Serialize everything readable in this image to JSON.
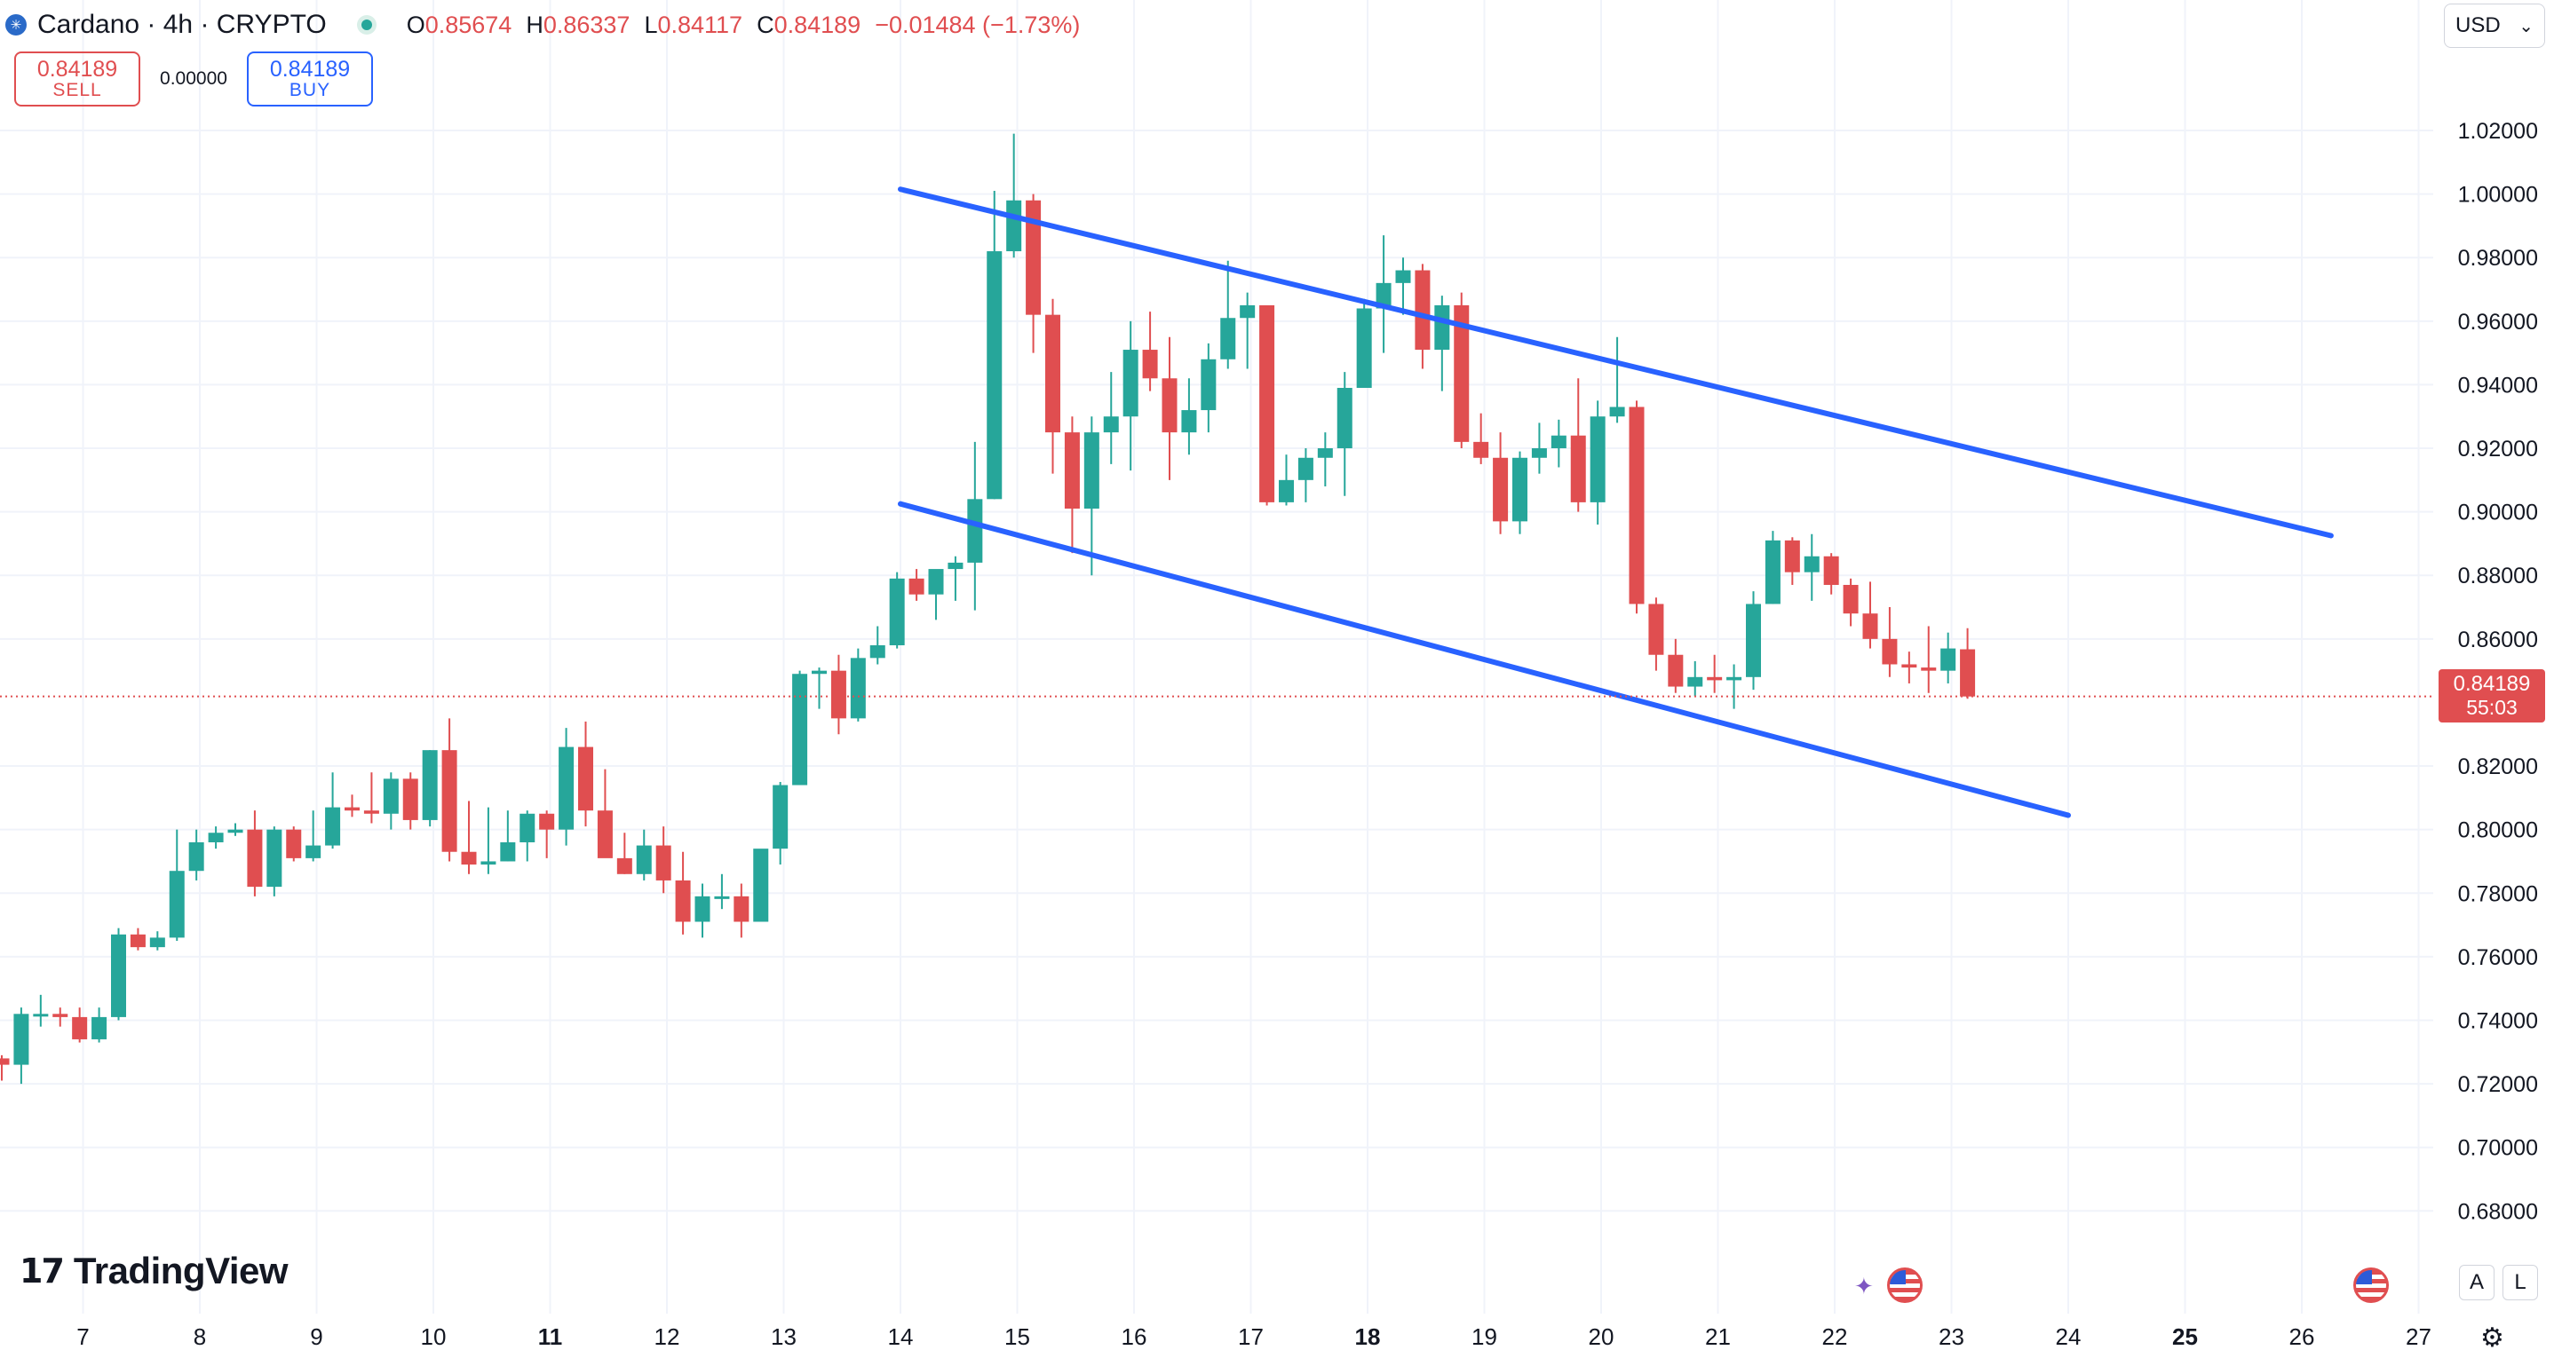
{
  "header": {
    "symbol_title": "Cardano · 4h · CRYPTO",
    "symbol_icon": "cardano-icon",
    "ohlc": {
      "o_label": "O",
      "o_value": "0.85674",
      "h_label": "H",
      "h_value": "0.86337",
      "l_label": "L",
      "l_value": "0.84117",
      "c_label": "C",
      "c_value": "0.84189",
      "change": "−0.01484 (−1.73%)"
    }
  },
  "trade": {
    "sell_price": "0.84189",
    "sell_label": "SELL",
    "spread": "0.00000",
    "buy_price": "0.84189",
    "buy_label": "BUY"
  },
  "currency": {
    "label": "USD"
  },
  "price_tag": {
    "price": "0.84189",
    "countdown": "55:03"
  },
  "branding": {
    "logo_mark": "17",
    "logo_text": "TradingView"
  },
  "controls": {
    "auto_label": "A",
    "log_label": "L"
  },
  "colors": {
    "up": "#26a69a",
    "down": "#e04e50",
    "channel": "#2962ff",
    "grid": "#f0f3fa",
    "price_line": "#e04e50"
  },
  "chart_data": {
    "type": "candlestick",
    "timeframe": "4h",
    "y_range": [
      0.665,
      1.045
    ],
    "y_ticks": [
      "1.02000",
      "1.00000",
      "0.98000",
      "0.96000",
      "0.94000",
      "0.92000",
      "0.90000",
      "0.88000",
      "0.86000",
      "0.82000",
      "0.80000",
      "0.78000",
      "0.76000",
      "0.74000",
      "0.72000",
      "0.70000",
      "0.68000"
    ],
    "x_ticks": [
      {
        "day": 7,
        "label": "7",
        "bold": false
      },
      {
        "day": 8,
        "label": "8",
        "bold": false
      },
      {
        "day": 9,
        "label": "9",
        "bold": false
      },
      {
        "day": 10,
        "label": "10",
        "bold": false
      },
      {
        "day": 11,
        "label": "11",
        "bold": true
      },
      {
        "day": 12,
        "label": "12",
        "bold": false
      },
      {
        "day": 13,
        "label": "13",
        "bold": false
      },
      {
        "day": 14,
        "label": "14",
        "bold": false
      },
      {
        "day": 15,
        "label": "15",
        "bold": false
      },
      {
        "day": 16,
        "label": "16",
        "bold": false
      },
      {
        "day": 17,
        "label": "17",
        "bold": false
      },
      {
        "day": 18,
        "label": "18",
        "bold": true
      },
      {
        "day": 19,
        "label": "19",
        "bold": false
      },
      {
        "day": 20,
        "label": "20",
        "bold": false
      },
      {
        "day": 21,
        "label": "21",
        "bold": false
      },
      {
        "day": 22,
        "label": "22",
        "bold": false
      },
      {
        "day": 23,
        "label": "23",
        "bold": false
      },
      {
        "day": 24,
        "label": "24",
        "bold": false
      },
      {
        "day": 25,
        "label": "25",
        "bold": true
      },
      {
        "day": 26,
        "label": "26",
        "bold": false
      },
      {
        "day": 27,
        "label": "27",
        "bold": false
      }
    ],
    "grid": true,
    "current_price": 0.84189,
    "candles": [
      {
        "o": 0.728,
        "h": 0.729,
        "l": 0.721,
        "c": 0.726
      },
      {
        "o": 0.726,
        "h": 0.744,
        "l": 0.72,
        "c": 0.742
      },
      {
        "o": 0.742,
        "h": 0.748,
        "l": 0.738,
        "c": 0.742
      },
      {
        "o": 0.742,
        "h": 0.744,
        "l": 0.738,
        "c": 0.741
      },
      {
        "o": 0.741,
        "h": 0.744,
        "l": 0.733,
        "c": 0.734
      },
      {
        "o": 0.734,
        "h": 0.744,
        "l": 0.733,
        "c": 0.741
      },
      {
        "o": 0.741,
        "h": 0.769,
        "l": 0.74,
        "c": 0.767
      },
      {
        "o": 0.767,
        "h": 0.769,
        "l": 0.762,
        "c": 0.763
      },
      {
        "o": 0.763,
        "h": 0.768,
        "l": 0.762,
        "c": 0.766
      },
      {
        "o": 0.766,
        "h": 0.8,
        "l": 0.765,
        "c": 0.787
      },
      {
        "o": 0.787,
        "h": 0.8,
        "l": 0.784,
        "c": 0.796
      },
      {
        "o": 0.796,
        "h": 0.801,
        "l": 0.794,
        "c": 0.799
      },
      {
        "o": 0.799,
        "h": 0.802,
        "l": 0.798,
        "c": 0.8
      },
      {
        "o": 0.8,
        "h": 0.806,
        "l": 0.779,
        "c": 0.782
      },
      {
        "o": 0.782,
        "h": 0.801,
        "l": 0.779,
        "c": 0.8
      },
      {
        "o": 0.8,
        "h": 0.801,
        "l": 0.79,
        "c": 0.791
      },
      {
        "o": 0.791,
        "h": 0.806,
        "l": 0.79,
        "c": 0.795
      },
      {
        "o": 0.795,
        "h": 0.818,
        "l": 0.794,
        "c": 0.807
      },
      {
        "o": 0.807,
        "h": 0.811,
        "l": 0.804,
        "c": 0.806
      },
      {
        "o": 0.806,
        "h": 0.818,
        "l": 0.802,
        "c": 0.805
      },
      {
        "o": 0.805,
        "h": 0.818,
        "l": 0.8,
        "c": 0.816
      },
      {
        "o": 0.816,
        "h": 0.818,
        "l": 0.8,
        "c": 0.803
      },
      {
        "o": 0.803,
        "h": 0.825,
        "l": 0.801,
        "c": 0.825
      },
      {
        "o": 0.825,
        "h": 0.835,
        "l": 0.79,
        "c": 0.793
      },
      {
        "o": 0.793,
        "h": 0.809,
        "l": 0.786,
        "c": 0.789
      },
      {
        "o": 0.789,
        "h": 0.807,
        "l": 0.786,
        "c": 0.79
      },
      {
        "o": 0.79,
        "h": 0.806,
        "l": 0.79,
        "c": 0.796
      },
      {
        "o": 0.796,
        "h": 0.806,
        "l": 0.79,
        "c": 0.805
      },
      {
        "o": 0.805,
        "h": 0.806,
        "l": 0.791,
        "c": 0.8
      },
      {
        "o": 0.8,
        "h": 0.832,
        "l": 0.795,
        "c": 0.826
      },
      {
        "o": 0.826,
        "h": 0.834,
        "l": 0.801,
        "c": 0.806
      },
      {
        "o": 0.806,
        "h": 0.819,
        "l": 0.792,
        "c": 0.791
      },
      {
        "o": 0.791,
        "h": 0.799,
        "l": 0.786,
        "c": 0.786
      },
      {
        "o": 0.786,
        "h": 0.8,
        "l": 0.784,
        "c": 0.795
      },
      {
        "o": 0.795,
        "h": 0.801,
        "l": 0.78,
        "c": 0.784
      },
      {
        "o": 0.784,
        "h": 0.793,
        "l": 0.767,
        "c": 0.771
      },
      {
        "o": 0.771,
        "h": 0.783,
        "l": 0.766,
        "c": 0.779
      },
      {
        "o": 0.779,
        "h": 0.786,
        "l": 0.775,
        "c": 0.779
      },
      {
        "o": 0.779,
        "h": 0.783,
        "l": 0.766,
        "c": 0.771
      },
      {
        "o": 0.771,
        "h": 0.792,
        "l": 0.772,
        "c": 0.794
      },
      {
        "o": 0.794,
        "h": 0.815,
        "l": 0.789,
        "c": 0.814
      },
      {
        "o": 0.814,
        "h": 0.85,
        "l": 0.814,
        "c": 0.849
      },
      {
        "o": 0.849,
        "h": 0.851,
        "l": 0.838,
        "c": 0.85
      },
      {
        "o": 0.85,
        "h": 0.855,
        "l": 0.83,
        "c": 0.835
      },
      {
        "o": 0.835,
        "h": 0.857,
        "l": 0.834,
        "c": 0.854
      },
      {
        "o": 0.854,
        "h": 0.864,
        "l": 0.852,
        "c": 0.858
      },
      {
        "o": 0.858,
        "h": 0.881,
        "l": 0.857,
        "c": 0.879
      },
      {
        "o": 0.879,
        "h": 0.882,
        "l": 0.872,
        "c": 0.874
      },
      {
        "o": 0.874,
        "h": 0.88,
        "l": 0.866,
        "c": 0.882
      },
      {
        "o": 0.882,
        "h": 0.886,
        "l": 0.872,
        "c": 0.884
      },
      {
        "o": 0.884,
        "h": 0.922,
        "l": 0.869,
        "c": 0.904
      },
      {
        "o": 0.904,
        "h": 1.001,
        "l": 0.904,
        "c": 0.982
      },
      {
        "o": 0.982,
        "h": 1.019,
        "l": 0.98,
        "c": 0.998
      },
      {
        "o": 0.998,
        "h": 1.0,
        "l": 0.95,
        "c": 0.962
      },
      {
        "o": 0.962,
        "h": 0.967,
        "l": 0.912,
        "c": 0.925
      },
      {
        "o": 0.925,
        "h": 0.93,
        "l": 0.887,
        "c": 0.901
      },
      {
        "o": 0.901,
        "h": 0.93,
        "l": 0.88,
        "c": 0.925
      },
      {
        "o": 0.925,
        "h": 0.944,
        "l": 0.915,
        "c": 0.93
      },
      {
        "o": 0.93,
        "h": 0.96,
        "l": 0.913,
        "c": 0.951
      },
      {
        "o": 0.951,
        "h": 0.963,
        "l": 0.938,
        "c": 0.942
      },
      {
        "o": 0.942,
        "h": 0.955,
        "l": 0.91,
        "c": 0.925
      },
      {
        "o": 0.925,
        "h": 0.942,
        "l": 0.918,
        "c": 0.932
      },
      {
        "o": 0.932,
        "h": 0.953,
        "l": 0.925,
        "c": 0.948
      },
      {
        "o": 0.948,
        "h": 0.979,
        "l": 0.945,
        "c": 0.961
      },
      {
        "o": 0.961,
        "h": 0.969,
        "l": 0.945,
        "c": 0.965
      },
      {
        "o": 0.965,
        "h": 0.964,
        "l": 0.902,
        "c": 0.903
      },
      {
        "o": 0.903,
        "h": 0.918,
        "l": 0.902,
        "c": 0.91
      },
      {
        "o": 0.91,
        "h": 0.92,
        "l": 0.903,
        "c": 0.917
      },
      {
        "o": 0.917,
        "h": 0.925,
        "l": 0.908,
        "c": 0.92
      },
      {
        "o": 0.92,
        "h": 0.944,
        "l": 0.905,
        "c": 0.939
      },
      {
        "o": 0.939,
        "h": 0.967,
        "l": 0.94,
        "c": 0.964
      },
      {
        "o": 0.964,
        "h": 0.987,
        "l": 0.95,
        "c": 0.972
      },
      {
        "o": 0.972,
        "h": 0.98,
        "l": 0.962,
        "c": 0.976
      },
      {
        "o": 0.976,
        "h": 0.978,
        "l": 0.945,
        "c": 0.951
      },
      {
        "o": 0.951,
        "h": 0.968,
        "l": 0.938,
        "c": 0.965
      },
      {
        "o": 0.965,
        "h": 0.969,
        "l": 0.92,
        "c": 0.922
      },
      {
        "o": 0.922,
        "h": 0.931,
        "l": 0.915,
        "c": 0.917
      },
      {
        "o": 0.917,
        "h": 0.925,
        "l": 0.893,
        "c": 0.897
      },
      {
        "o": 0.897,
        "h": 0.919,
        "l": 0.893,
        "c": 0.917
      },
      {
        "o": 0.917,
        "h": 0.928,
        "l": 0.912,
        "c": 0.92
      },
      {
        "o": 0.92,
        "h": 0.929,
        "l": 0.914,
        "c": 0.924
      },
      {
        "o": 0.924,
        "h": 0.942,
        "l": 0.9,
        "c": 0.903
      },
      {
        "o": 0.903,
        "h": 0.935,
        "l": 0.896,
        "c": 0.93
      },
      {
        "o": 0.93,
        "h": 0.955,
        "l": 0.928,
        "c": 0.933
      },
      {
        "o": 0.933,
        "h": 0.935,
        "l": 0.868,
        "c": 0.871
      },
      {
        "o": 0.871,
        "h": 0.873,
        "l": 0.85,
        "c": 0.855
      },
      {
        "o": 0.855,
        "h": 0.86,
        "l": 0.843,
        "c": 0.845
      },
      {
        "o": 0.845,
        "h": 0.853,
        "l": 0.842,
        "c": 0.848
      },
      {
        "o": 0.848,
        "h": 0.855,
        "l": 0.843,
        "c": 0.847
      },
      {
        "o": 0.847,
        "h": 0.852,
        "l": 0.838,
        "c": 0.848
      },
      {
        "o": 0.848,
        "h": 0.875,
        "l": 0.844,
        "c": 0.871
      },
      {
        "o": 0.871,
        "h": 0.894,
        "l": 0.871,
        "c": 0.891
      },
      {
        "o": 0.891,
        "h": 0.892,
        "l": 0.877,
        "c": 0.881
      },
      {
        "o": 0.881,
        "h": 0.893,
        "l": 0.872,
        "c": 0.886
      },
      {
        "o": 0.886,
        "h": 0.887,
        "l": 0.874,
        "c": 0.877
      },
      {
        "o": 0.877,
        "h": 0.879,
        "l": 0.864,
        "c": 0.868
      },
      {
        "o": 0.868,
        "h": 0.878,
        "l": 0.857,
        "c": 0.86
      },
      {
        "o": 0.86,
        "h": 0.87,
        "l": 0.848,
        "c": 0.852
      },
      {
        "o": 0.852,
        "h": 0.856,
        "l": 0.846,
        "c": 0.851
      },
      {
        "o": 0.851,
        "h": 0.864,
        "l": 0.843,
        "c": 0.85
      },
      {
        "o": 0.85,
        "h": 0.862,
        "l": 0.846,
        "c": 0.857
      },
      {
        "o": 0.85674,
        "h": 0.86337,
        "l": 0.84117,
        "c": 0.84189
      }
    ],
    "trendlines": [
      {
        "name": "channel-upper",
        "from": {
          "day": 14.0,
          "price": 1.0015
        },
        "to": {
          "day": 26.25,
          "price": 0.8925
        }
      },
      {
        "name": "channel-lower",
        "from": {
          "day": 14.0,
          "price": 0.9025
        },
        "to": {
          "day": 24.0,
          "price": 0.8045
        }
      }
    ]
  }
}
